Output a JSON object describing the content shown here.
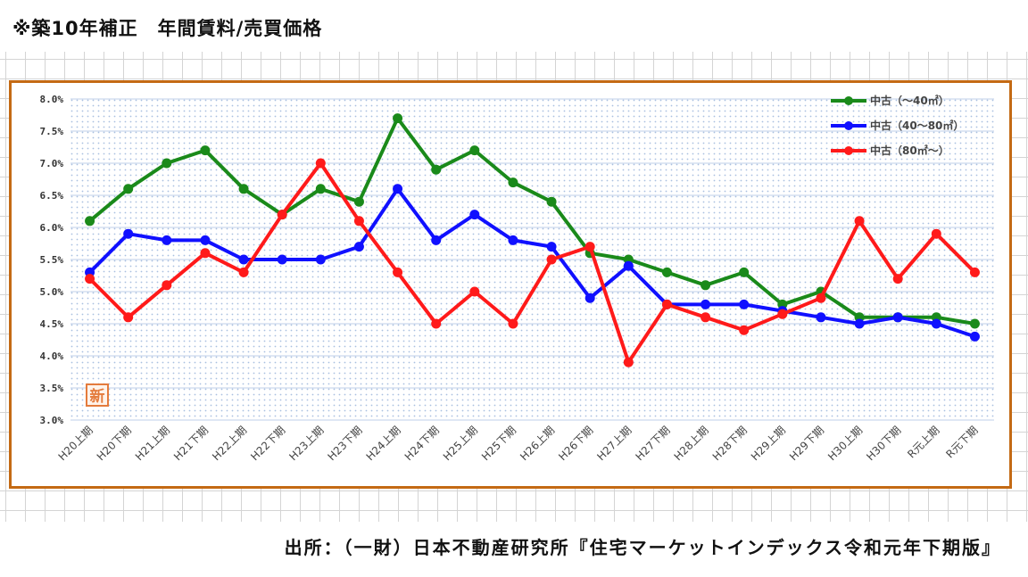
{
  "heading": "※築10年補正　年間賃料/売買価格",
  "source": "出所：（一財）日本不動産研究所『住宅マーケットインデックス令和元年下期版』",
  "stamp_char": "新",
  "colors": {
    "frame": "#c46a14",
    "grid": "#bfcfe8",
    "dots": "#a9c0e0"
  },
  "chart_data": {
    "type": "line",
    "title": "",
    "xlabel": "",
    "ylabel": "",
    "ylim": [
      3.0,
      8.0
    ],
    "ytick_step": 0.5,
    "ytick_format": "percent_1dp",
    "legend_position": "top-right",
    "categories": [
      "H20上期",
      "H20下期",
      "H21上期",
      "H21下期",
      "H22上期",
      "H22下期",
      "H23上期",
      "H23下期",
      "H24上期",
      "H24下期",
      "H25上期",
      "H25下期",
      "H26上期",
      "H26下期",
      "H27上期",
      "H27下期",
      "H28上期",
      "H28下期",
      "H29上期",
      "H29下期",
      "H30上期",
      "H30下期",
      "R元上期",
      "R元下期"
    ],
    "series": [
      {
        "name": "中古（～40㎡）",
        "color": "#1a8a1a",
        "values": [
          6.1,
          6.6,
          7.0,
          7.2,
          6.6,
          6.2,
          6.6,
          6.4,
          7.7,
          6.9,
          7.2,
          6.7,
          6.4,
          5.6,
          5.5,
          5.3,
          5.1,
          5.3,
          4.8,
          5.0,
          4.6,
          4.6,
          4.6,
          4.5
        ]
      },
      {
        "name": "中古（40～80㎡）",
        "color": "#1010ff",
        "values": [
          5.3,
          5.9,
          5.8,
          5.8,
          5.5,
          5.5,
          5.5,
          5.7,
          6.6,
          5.8,
          6.2,
          5.8,
          5.7,
          4.9,
          5.4,
          4.8,
          4.8,
          4.8,
          4.7,
          4.6,
          4.5,
          4.6,
          4.5,
          4.3
        ]
      },
      {
        "name": "中古（80㎡～）",
        "color": "#ff1a1a",
        "values": [
          5.2,
          4.6,
          5.1,
          5.6,
          5.3,
          6.2,
          7.0,
          6.1,
          5.3,
          4.5,
          5.0,
          4.5,
          5.5,
          5.7,
          3.9,
          4.8,
          4.6,
          4.4,
          4.65,
          4.9,
          6.1,
          5.2,
          5.9,
          5.3
        ]
      }
    ]
  }
}
